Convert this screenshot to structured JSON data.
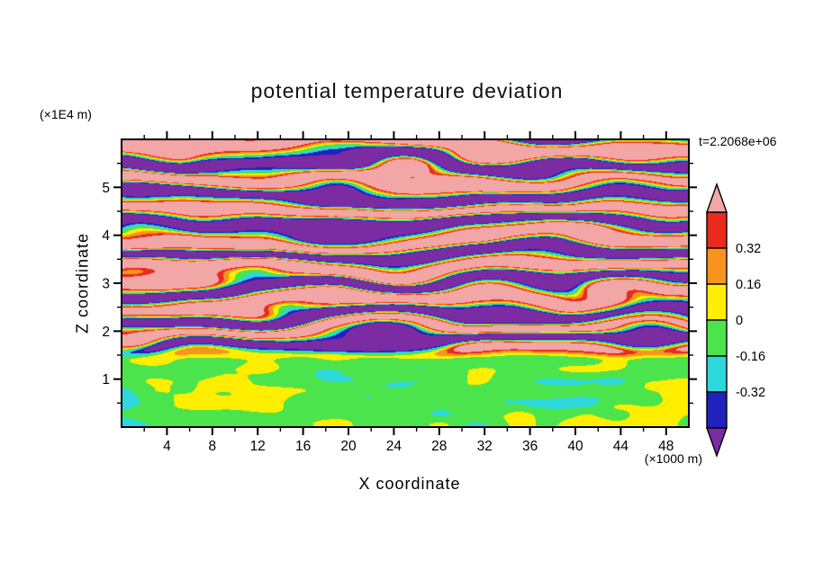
{
  "chart_data": {
    "type": "heatmap",
    "title": "potential temperature deviation",
    "time_label": "t=2.2068e+06",
    "x_axis": {
      "label": "X coordinate",
      "unit": "(×1000 m)",
      "range": [
        0,
        50
      ],
      "major_ticks": [
        4,
        8,
        12,
        16,
        20,
        24,
        28,
        32,
        36,
        40,
        44,
        48
      ],
      "minor_step": 2
    },
    "z_axis": {
      "label": "Z coordinate",
      "unit": "(×1E4 m)",
      "range": [
        0,
        6
      ],
      "major_ticks": [
        1,
        2,
        3,
        4,
        5
      ],
      "minor_step": 0.5
    },
    "colorbar": {
      "labels_top_to_bottom": [
        "0.32",
        "0.16",
        "0",
        "-0.16",
        "-0.32"
      ],
      "levels": [
        -0.48,
        -0.32,
        -0.16,
        0,
        0.16,
        0.32,
        0.48
      ],
      "colors_low_to_high": [
        "#7b2ca2",
        "#2121bd",
        "#2dd8dc",
        "#4ce44c",
        "#ffee00",
        "#f79420",
        "#e92a1d",
        "#f2a6a6"
      ]
    },
    "field_description": "Horizontally layered gravity-wave field: alternating pink (>0.48) and purple (<-0.48) undulating bands fill the upper region with thin rainbow transition edges (red, orange, yellow, green, cyan, blue); a weakly negative green layer (about -0.06) with cyan streaks and yellow-orange patches occupies the region below z ≈ 1.4 ×1E4 m.",
    "field_synthesis": {
      "bands": 9.5,
      "boundary_zfrac": 0.225,
      "upper_amp_min": 0.45,
      "upper_amp_max": 1.6,
      "lower_mean": -0.06
    }
  }
}
